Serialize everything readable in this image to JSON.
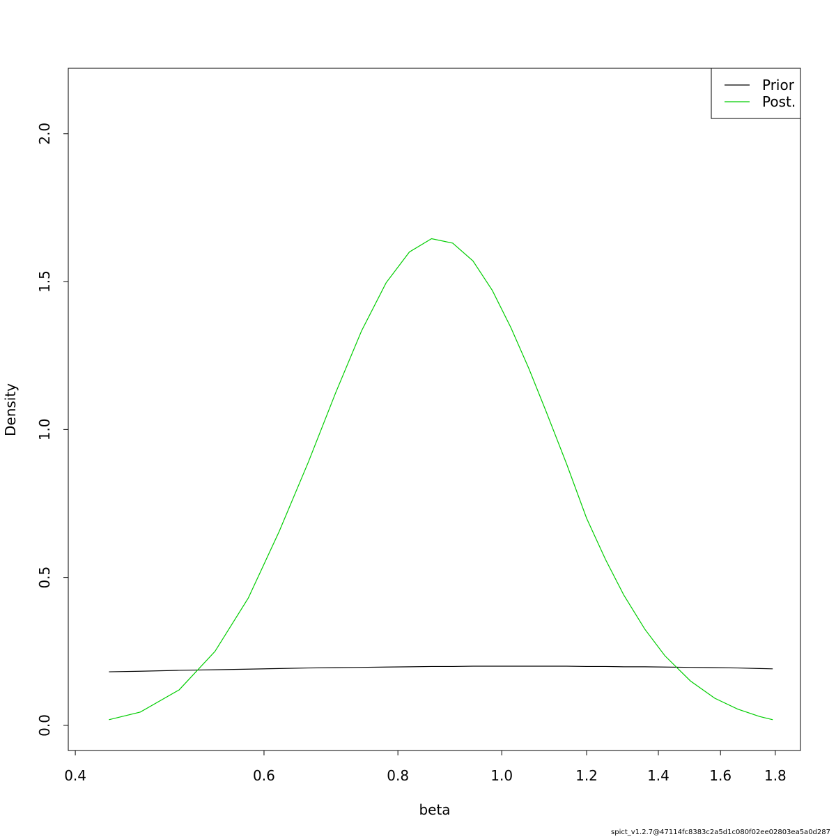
{
  "chart_data": {
    "type": "line",
    "x_label": "beta",
    "y_label": "Density",
    "footer": "spict_v1.2.7@47114fc8383c2a5d1c080f02ee02803ea5a0d287",
    "x_scale": "log",
    "xlim": [
      0.394,
      1.9
    ],
    "ylim": [
      -0.085,
      2.221
    ],
    "xticks": [
      0.4,
      0.6,
      0.8,
      {
        "value": 1,
        "label": "1.0"
      },
      1.2,
      1.4,
      1.6,
      1.8
    ],
    "yticks": [
      {
        "value": 0,
        "label": "0.0"
      },
      0.5,
      {
        "value": 1,
        "label": "1.0"
      },
      1.5,
      {
        "value": 2,
        "label": "2.0"
      }
    ],
    "legend": "top-right",
    "x": [
      0.43,
      0.46,
      0.5,
      0.54,
      0.58,
      0.62,
      0.66,
      0.7,
      0.74,
      0.78,
      0.82,
      0.86,
      0.9,
      0.94,
      0.98,
      1.02,
      1.06,
      1.1,
      1.15,
      1.2,
      1.25,
      1.3,
      1.36,
      1.42,
      1.5,
      1.58,
      1.66,
      1.74,
      1.79
    ],
    "series": [
      {
        "name": "Prior",
        "color": "#000000",
        "values": [
          0.181,
          0.183,
          0.186,
          0.188,
          0.19,
          0.192,
          0.194,
          0.195,
          0.196,
          0.197,
          0.198,
          0.199,
          0.199,
          0.2,
          0.2,
          0.2,
          0.2,
          0.2,
          0.2,
          0.199,
          0.199,
          0.198,
          0.198,
          0.197,
          0.196,
          0.195,
          0.194,
          0.192,
          0.191
        ]
      },
      {
        "name": "Post.",
        "color": "#00cd00",
        "values": [
          0.019,
          0.045,
          0.12,
          0.25,
          0.43,
          0.656,
          0.89,
          1.125,
          1.334,
          1.496,
          1.6,
          1.645,
          1.63,
          1.57,
          1.47,
          1.344,
          1.206,
          1.061,
          0.882,
          0.7,
          0.56,
          0.44,
          0.325,
          0.235,
          0.15,
          0.092,
          0.055,
          0.03,
          0.019
        ]
      }
    ]
  }
}
